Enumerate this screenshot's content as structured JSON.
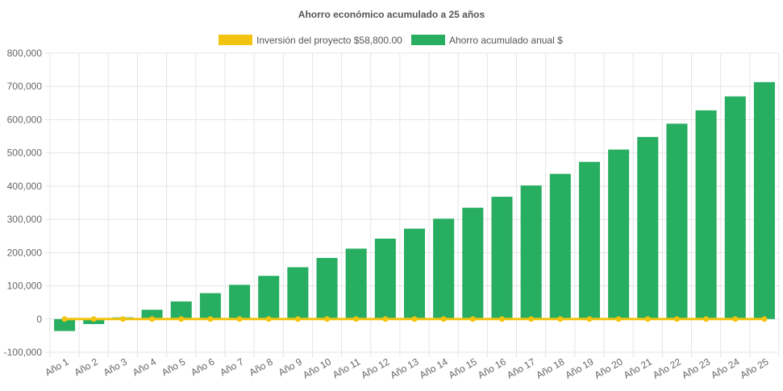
{
  "chart_data": {
    "type": "bar",
    "title": "Ahorro económico acumulado a 25 años",
    "categories": [
      "Año 1",
      "Año 2",
      "Año 3",
      "Año 4",
      "Año 5",
      "Año 6",
      "Año 7",
      "Año 8",
      "Año 9",
      "Año 10",
      "Año 11",
      "Año 12",
      "Año 13",
      "Año 14",
      "Año 15",
      "Año 16",
      "Año 17",
      "Año 18",
      "Año 19",
      "Año 20",
      "Año 21",
      "Año 22",
      "Año 23",
      "Año 24",
      "Año 25"
    ],
    "series": [
      {
        "name": "Inversión del proyecto $58,800.00",
        "type": "line",
        "color": "#f2c40f",
        "values": [
          0,
          0,
          0,
          0,
          0,
          0,
          0,
          0,
          0,
          0,
          0,
          0,
          0,
          0,
          0,
          0,
          0,
          0,
          0,
          0,
          0,
          0,
          0,
          0,
          0
        ]
      },
      {
        "name": "Ahorro acumulado anual $",
        "type": "bar",
        "color": "#27ae60",
        "values": [
          -36000,
          -15000,
          5000,
          28000,
          53000,
          78000,
          103000,
          130000,
          156000,
          184000,
          212000,
          242000,
          272000,
          302000,
          335000,
          368000,
          402000,
          437000,
          473000,
          510000,
          548000,
          588000,
          628000,
          670000,
          713000
        ]
      }
    ],
    "ylim": [
      -100000,
      800000
    ],
    "yticks": [
      800000,
      700000,
      600000,
      500000,
      400000,
      300000,
      200000,
      100000,
      0,
      -100000
    ],
    "ytick_labels": [
      "800,000",
      "700,000",
      "600,000",
      "500,000",
      "400,000",
      "300,000",
      "200,000",
      "100,000",
      "0",
      "-100,000"
    ],
    "legend_position": "top",
    "grid": true
  }
}
